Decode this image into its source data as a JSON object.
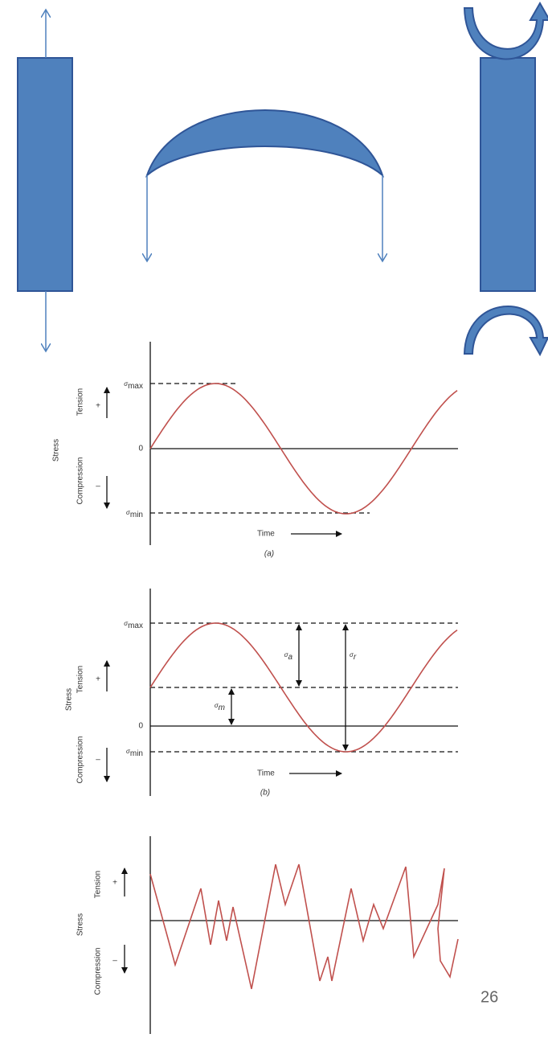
{
  "graph_a": {
    "stress_label": "Stress",
    "tension_label": "Tension",
    "compression_label": "Compression",
    "plus": "+",
    "minus": "–",
    "zero": "0",
    "max_label": {
      "symbol": "σ",
      "sub": "max"
    },
    "min_label": {
      "symbol": "σ",
      "sub": "min"
    },
    "time_label": "Time",
    "caption": "(a)"
  },
  "graph_b": {
    "stress_label": "Stress",
    "tension_label": "Tension",
    "compression_label": "Compression",
    "plus": "+",
    "minus": "–",
    "zero": "0",
    "max_label": {
      "symbol": "σ",
      "sub": "max"
    },
    "min_label": {
      "symbol": "σ",
      "sub": "min"
    },
    "amplitude_label": {
      "symbol": "σ",
      "sub": "a"
    },
    "mean_label": {
      "symbol": "σ",
      "sub": "m"
    },
    "range_label": {
      "symbol": "σ",
      "sub": "r"
    },
    "time_label": "Time",
    "caption": "(b)"
  },
  "graph_c": {
    "stress_label": "Stress",
    "tension_label": "Tension",
    "compression_label": "Compression",
    "plus": "+",
    "minus": "–"
  },
  "page_number": "26"
}
